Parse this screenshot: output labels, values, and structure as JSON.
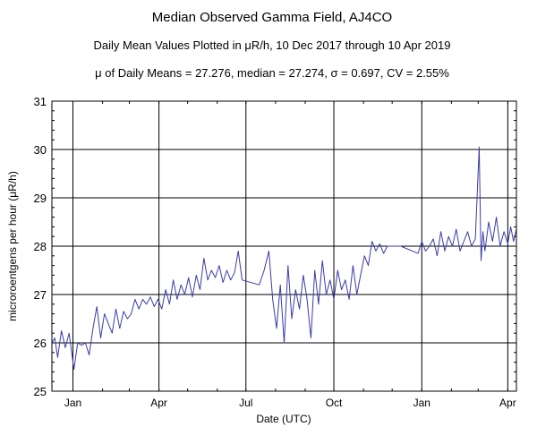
{
  "chart_data": {
    "type": "line",
    "title": "Median Observed Gamma Field, AJ4CO",
    "subtitle": "Daily Mean Values Plotted in μR/h, 10 Dec 2017 through 10 Apr 2019",
    "stats": "μ of Daily Means = 27.276,   median = 27.274,   σ = 0.697,   CV = 2.55%",
    "xlabel": "Date (UTC)",
    "ylabel": "microroentgens per hour (μR/h)",
    "x_range": [
      "2017-12-10",
      "2019-04-10"
    ],
    "ylim": [
      25,
      31
    ],
    "x_ticks": [
      {
        "label": "Jan",
        "date": "2018-01-01"
      },
      {
        "label": "Apr",
        "date": "2018-04-01"
      },
      {
        "label": "Jul",
        "date": "2018-07-01"
      },
      {
        "label": "Oct",
        "date": "2018-10-01"
      },
      {
        "label": "Jan",
        "date": "2019-01-01"
      },
      {
        "label": "Apr",
        "date": "2019-04-01"
      }
    ],
    "y_ticks": [
      25,
      26,
      27,
      28,
      29,
      30,
      31
    ],
    "grid": true,
    "line_color": "#3b3ba8",
    "series": [
      {
        "x": [
          "2017-12-10",
          "2017-12-13",
          "2017-12-16",
          "2017-12-20",
          "2017-12-24",
          "2017-12-28",
          "2018-01-02",
          "2018-01-06",
          "2018-01-10",
          "2018-01-14",
          "2018-01-18",
          "2018-01-22",
          "2018-01-26",
          "2018-01-30",
          "2018-02-03",
          "2018-02-07",
          "2018-02-11",
          "2018-02-15",
          "2018-02-19",
          "2018-02-23",
          "2018-02-27",
          "2018-03-03",
          "2018-03-07",
          "2018-03-11",
          "2018-03-15",
          "2018-03-19",
          "2018-03-23",
          "2018-03-27",
          "2018-03-31",
          "2018-04-04",
          "2018-04-08",
          "2018-04-12",
          "2018-04-16",
          "2018-04-20",
          "2018-04-24",
          "2018-04-28",
          "2018-05-02",
          "2018-05-06",
          "2018-05-10",
          "2018-05-14",
          "2018-05-18",
          "2018-05-22",
          "2018-05-26",
          "2018-05-30",
          "2018-06-03",
          "2018-06-07",
          "2018-06-11",
          "2018-06-15",
          "2018-06-19",
          "2018-06-23",
          "2018-06-27",
          "2018-07-15",
          "2018-07-20",
          "2018-07-25",
          "2018-07-29",
          "2018-08-02",
          "2018-08-06",
          "2018-08-10",
          "2018-08-14",
          "2018-08-18",
          "2018-08-22",
          "2018-08-26",
          "2018-08-30",
          "2018-09-03",
          "2018-09-07",
          "2018-09-11",
          "2018-09-15",
          "2018-09-19",
          "2018-09-23",
          "2018-09-27",
          "2018-10-01",
          "2018-10-05",
          "2018-10-09",
          "2018-10-13",
          "2018-10-17",
          "2018-10-21",
          "2018-10-25",
          "2018-10-29",
          "2018-11-02",
          "2018-11-06",
          "2018-11-10",
          "2018-11-14",
          "2018-11-18",
          "2018-11-22",
          "2018-11-26",
          "2018-12-10",
          "2018-12-28",
          "2019-01-01",
          "2019-01-05",
          "2019-01-09",
          "2019-01-13",
          "2019-01-17",
          "2019-01-21",
          "2019-01-25",
          "2019-01-29",
          "2019-02-02",
          "2019-02-06",
          "2019-02-10",
          "2019-02-14",
          "2019-02-18",
          "2019-02-22",
          "2019-02-26",
          "2019-03-02",
          "2019-03-04",
          "2019-03-06",
          "2019-03-08",
          "2019-03-12",
          "2019-03-16",
          "2019-03-20",
          "2019-03-24",
          "2019-03-28",
          "2019-04-01",
          "2019-04-04",
          "2019-04-07",
          "2019-04-10"
        ],
        "values": [
          26.0,
          26.1,
          25.7,
          26.25,
          25.9,
          26.2,
          25.45,
          26.0,
          25.95,
          26.0,
          25.75,
          26.3,
          26.75,
          26.1,
          26.6,
          26.4,
          26.2,
          26.7,
          26.3,
          26.65,
          26.5,
          26.6,
          26.9,
          26.7,
          26.9,
          26.8,
          26.95,
          26.75,
          26.9,
          26.7,
          27.1,
          26.8,
          27.3,
          26.9,
          27.2,
          27.0,
          27.35,
          26.95,
          27.4,
          27.1,
          27.75,
          27.3,
          27.5,
          27.35,
          27.6,
          27.25,
          27.5,
          27.3,
          27.45,
          27.9,
          27.3,
          27.2,
          27.5,
          27.9,
          26.9,
          26.3,
          27.2,
          26.0,
          27.6,
          26.5,
          27.1,
          26.7,
          27.4,
          26.9,
          26.1,
          27.5,
          26.8,
          27.7,
          27.0,
          27.3,
          26.9,
          27.5,
          27.1,
          27.3,
          26.9,
          27.6,
          27.0,
          27.4,
          27.8,
          27.6,
          28.1,
          27.9,
          28.05,
          27.85,
          28.0,
          28.0,
          27.85,
          28.1,
          27.9,
          28.0,
          28.15,
          27.8,
          28.3,
          27.9,
          28.2,
          28.0,
          28.35,
          27.9,
          28.1,
          28.3,
          28.0,
          28.15,
          30.05,
          27.7,
          28.3,
          27.9,
          28.5,
          28.1,
          28.6,
          28.0,
          28.3,
          28.05,
          28.4,
          28.1,
          28.35
        ]
      }
    ]
  }
}
